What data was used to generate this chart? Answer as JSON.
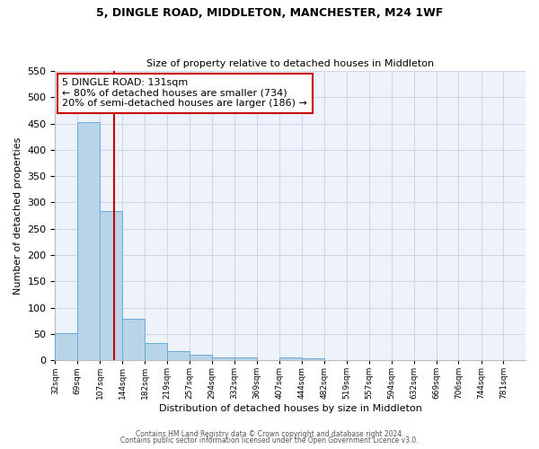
{
  "title": "5, DINGLE ROAD, MIDDLETON, MANCHESTER, M24 1WF",
  "subtitle": "Size of property relative to detached houses in Middleton",
  "xlabel": "Distribution of detached houses by size in Middleton",
  "ylabel": "Number of detached properties",
  "bar_labels": [
    "32sqm",
    "69sqm",
    "107sqm",
    "144sqm",
    "182sqm",
    "219sqm",
    "257sqm",
    "294sqm",
    "332sqm",
    "369sqm",
    "407sqm",
    "444sqm",
    "482sqm",
    "519sqm",
    "557sqm",
    "594sqm",
    "632sqm",
    "669sqm",
    "706sqm",
    "744sqm",
    "781sqm"
  ],
  "bar_values": [
    52,
    452,
    283,
    78,
    32,
    17,
    10,
    5,
    5,
    0,
    5,
    3,
    0,
    0,
    0,
    0,
    0,
    0,
    0,
    0,
    0
  ],
  "bar_color": "#b8d4e8",
  "bar_edge_color": "#6aaad4",
  "ylim": [
    0,
    550
  ],
  "yticks": [
    0,
    50,
    100,
    150,
    200,
    250,
    300,
    350,
    400,
    450,
    500,
    550
  ],
  "property_size": 131,
  "vline_color": "#cc0000",
  "annotation_title": "5 DINGLE ROAD: 131sqm",
  "annotation_line1": "← 80% of detached houses are smaller (734)",
  "annotation_line2": "20% of semi-detached houses are larger (186) →",
  "annotation_box_color": "#ffffff",
  "annotation_box_edge": "#cc0000",
  "footer1": "Contains HM Land Registry data © Crown copyright and database right 2024.",
  "footer2": "Contains public sector information licensed under the Open Government Licence v3.0.",
  "grid_color": "#ccd6e8",
  "background_color": "#eef2fa",
  "x_starts": [
    32,
    69,
    107,
    144,
    182,
    219,
    257,
    294,
    332,
    369,
    407,
    444,
    482,
    519,
    557,
    594,
    632,
    669,
    706,
    744,
    781
  ],
  "bin_width": 37,
  "xlim_left": 32,
  "xlim_right": 818
}
